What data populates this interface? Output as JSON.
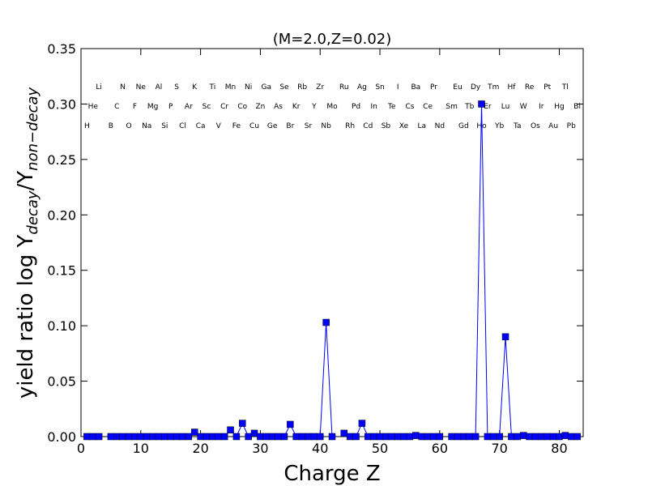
{
  "chart_data": {
    "type": "line",
    "title": "(M=2.0,Z=0.02)",
    "xlabel": "Charge Z",
    "ylabel": [
      "yield ratio log Y",
      "decay",
      "/Y",
      "non−decay"
    ],
    "x": [
      1,
      2,
      3,
      4,
      5,
      6,
      7,
      8,
      9,
      10,
      11,
      12,
      13,
      14,
      15,
      16,
      17,
      18,
      19,
      20,
      21,
      22,
      23,
      24,
      25,
      26,
      27,
      28,
      29,
      30,
      31,
      32,
      33,
      34,
      35,
      36,
      37,
      38,
      39,
      40,
      41,
      42,
      43,
      44,
      45,
      46,
      47,
      48,
      49,
      50,
      51,
      52,
      53,
      54,
      55,
      56,
      57,
      58,
      59,
      60,
      61,
      62,
      63,
      64,
      65,
      66,
      67,
      68,
      69,
      70,
      71,
      72,
      73,
      74,
      75,
      76,
      77,
      78,
      79,
      80,
      81,
      82,
      83
    ],
    "element_labels": [
      "H",
      "He",
      "Li",
      null,
      "B",
      "C",
      "N",
      "O",
      "F",
      "Ne",
      "Na",
      "Mg",
      "Al",
      "Si",
      "P",
      "S",
      "Cl",
      "Ar",
      "K",
      "Ca",
      "Sc",
      "Ti",
      "V",
      "Cr",
      "Mn",
      "Fe",
      "Co",
      "Ni",
      "Cu",
      "Zn",
      "Ga",
      "Ge",
      "As",
      "Se",
      "Br",
      "Kr",
      "Rb",
      "Sr",
      "Y",
      "Zr",
      "Nb",
      "Mo",
      null,
      "Ru",
      "Rh",
      "Pd",
      "Ag",
      "Cd",
      "In",
      "Sn",
      "Sb",
      "Te",
      "I",
      "Xe",
      "Cs",
      "Ba",
      "La",
      "Ce",
      "Pr",
      "Nd",
      null,
      "Sm",
      "Eu",
      "Gd",
      "Tb",
      "Dy",
      "Ho",
      "Er",
      "Tm",
      "Yb",
      "Lu",
      "Hf",
      "Ta",
      "W",
      "Re",
      "Os",
      "Ir",
      "Pt",
      "Au",
      "Hg",
      "Tl",
      "Pb",
      "Bi"
    ],
    "series": [
      {
        "color": "#0000ff",
        "values": [
          0,
          0,
          0,
          null,
          0,
          0,
          0,
          0,
          0,
          0,
          0,
          0,
          0,
          0,
          0,
          0,
          0,
          0,
          0.004,
          0,
          0,
          0,
          0,
          0,
          0.006,
          0,
          0.012,
          0,
          0.003,
          0,
          0,
          0,
          0,
          0,
          0.011,
          0,
          0,
          0,
          0,
          0,
          0.103,
          0,
          null,
          0.003,
          0,
          0,
          0.012,
          0,
          0,
          0,
          0,
          0,
          0,
          0,
          0,
          0.001,
          0,
          0,
          0,
          0,
          null,
          0,
          0,
          0,
          0,
          0,
          0.3,
          0,
          0,
          0,
          0.09,
          0,
          0,
          0.001,
          0,
          0,
          0,
          0,
          0,
          0,
          0.001,
          0,
          0
        ]
      }
    ],
    "xlim": [
      0,
      84
    ],
    "xticks": [
      0,
      10,
      20,
      30,
      40,
      50,
      60,
      70,
      80
    ],
    "ylim": [
      0,
      0.35
    ],
    "yticks": [
      {
        "value": 0,
        "label": "0.00"
      },
      {
        "value": 0.05,
        "label": "0.05"
      },
      {
        "value": 0.1,
        "label": "0.10"
      },
      {
        "value": 0.15,
        "label": "0.15"
      },
      {
        "value": 0.2,
        "label": "0.20"
      },
      {
        "value": 0.25,
        "label": "0.25"
      },
      {
        "value": 0.3,
        "label": "0.30"
      },
      {
        "value": 0.35,
        "label": "0.35"
      }
    ]
  }
}
